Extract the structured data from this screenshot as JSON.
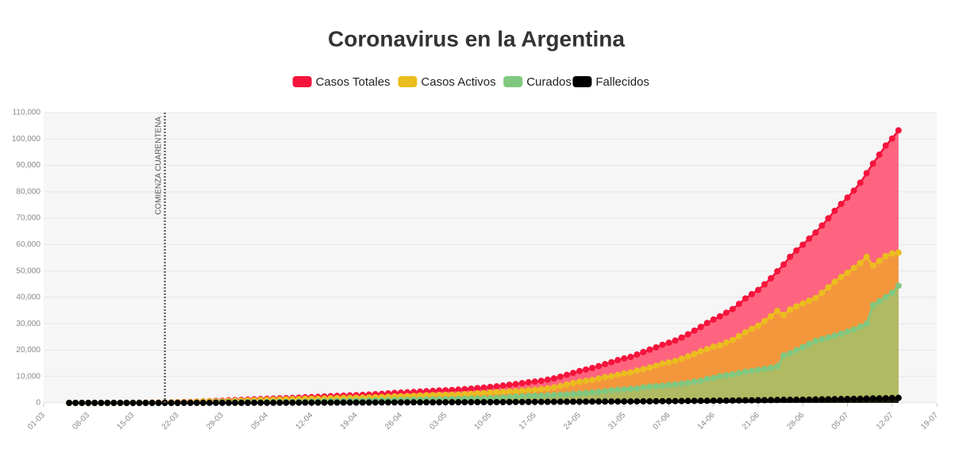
{
  "chart_data": {
    "type": "area",
    "title": "Coronavirus en la Argentina",
    "annotation": {
      "text": "COMIENZA CUARENTENA",
      "x": "20-03"
    },
    "legend": "top",
    "grid": true,
    "x": [
      "05-03",
      "06-03",
      "07-03",
      "08-03",
      "09-03",
      "10-03",
      "11-03",
      "12-03",
      "13-03",
      "14-03",
      "15-03",
      "16-03",
      "17-03",
      "18-03",
      "19-03",
      "20-03",
      "21-03",
      "22-03",
      "23-03",
      "24-03",
      "25-03",
      "26-03",
      "27-03",
      "28-03",
      "29-03",
      "30-03",
      "31-03",
      "01-04",
      "02-04",
      "03-04",
      "04-04",
      "05-04",
      "06-04",
      "07-04",
      "08-04",
      "09-04",
      "10-04",
      "11-04",
      "12-04",
      "13-04",
      "14-04",
      "15-04",
      "16-04",
      "17-04",
      "18-04",
      "19-04",
      "20-04",
      "21-04",
      "22-04",
      "23-04",
      "24-04",
      "25-04",
      "26-04",
      "27-04",
      "28-04",
      "29-04",
      "30-04",
      "01-05",
      "02-05",
      "03-05",
      "04-05",
      "05-05",
      "06-05",
      "07-05",
      "08-05",
      "09-05",
      "10-05",
      "11-05",
      "12-05",
      "13-05",
      "14-05",
      "15-05",
      "16-05",
      "17-05",
      "18-05",
      "19-05",
      "20-05",
      "21-05",
      "22-05",
      "23-05",
      "24-05",
      "25-05",
      "26-05",
      "27-05",
      "28-05",
      "29-05",
      "30-05",
      "31-05",
      "01-06",
      "02-06",
      "03-06",
      "04-06",
      "05-06",
      "06-06",
      "07-06",
      "08-06",
      "09-06",
      "10-06",
      "11-06",
      "12-06",
      "13-06",
      "14-06",
      "15-06",
      "16-06",
      "17-06",
      "18-06",
      "19-06",
      "20-06",
      "21-06",
      "22-06",
      "23-06",
      "24-06",
      "25-06",
      "26-06",
      "27-06",
      "28-06",
      "29-06",
      "30-06",
      "01-07",
      "02-07",
      "03-07",
      "04-07",
      "05-07",
      "06-07",
      "07-07",
      "08-07",
      "09-07",
      "10-07",
      "11-07",
      "12-07",
      "13-07"
    ],
    "series": [
      {
        "name": "Casos Totales",
        "color": "#f5143c",
        "fill": "#ff4a6a",
        "values": [
          2,
          8,
          9,
          12,
          17,
          19,
          21,
          31,
          34,
          45,
          56,
          65,
          79,
          97,
          128,
          158,
          225,
          266,
          301,
          387,
          502,
          589,
          690,
          745,
          820,
          966,
          1054,
          1133,
          1265,
          1353,
          1451,
          1554,
          1628,
          1715,
          1795,
          1894,
          1975,
          2142,
          2208,
          2277,
          2443,
          2571,
          2669,
          2758,
          2839,
          2941,
          3031,
          3144,
          3288,
          3435,
          3607,
          3780,
          3892,
          4003,
          4127,
          4285,
          4428,
          4532,
          4681,
          4783,
          4887,
          5020,
          5208,
          5371,
          5611,
          5776,
          6034,
          6265,
          6563,
          6879,
          7134,
          7479,
          7805,
          8068,
          8371,
          8809,
          9283,
          9931,
          10649,
          11353,
          12076,
          12628,
          13228,
          13933,
          14702,
          15419,
          16214,
          16851,
          17415,
          18319,
          19268,
          20197,
          21037,
          22020,
          22794,
          23620,
          24761,
          25987,
          27373,
          28764,
          30295,
          31577,
          32785,
          34159,
          35552,
          37510,
          39570,
          41204,
          42785,
          44931,
          47216,
          49851,
          52457,
          55343,
          57744,
          59933,
          62268,
          64530,
          67197,
          69941,
          72786,
          75376,
          77815,
          80447,
          83426,
          87030,
          90693,
          94060,
          97509,
          100166,
          103265
        ]
      },
      {
        "name": "Casos Activos",
        "color": "#ebbd1e",
        "fill": "#f2a030",
        "values": [
          2,
          8,
          8,
          11,
          16,
          18,
          20,
          29,
          32,
          43,
          54,
          62,
          76,
          91,
          122,
          151,
          194,
          210,
          232,
          316,
          418,
          500,
          591,
          529,
          568,
          699,
          778,
          841,
          960,
          1030,
          1123,
          1175,
          1230,
          1292,
          1357,
          1437,
          1445,
          1577,
          1591,
          1573,
          1677,
          1763,
          1831,
          1889,
          1918,
          1962,
          2004,
          2077,
          2147,
          2226,
          2315,
          2448,
          2503,
          2584,
          2675,
          2787,
          2892,
          2953,
          3059,
          3092,
          3131,
          3185,
          3317,
          3430,
          3635,
          3727,
          3927,
          4092,
          4171,
          4332,
          4396,
          4589,
          4807,
          4983,
          5241,
          5533,
          5882,
          6398,
          6979,
          7495,
          8014,
          8361,
          8729,
          9257,
          9775,
          10103,
          10645,
          11162,
          11523,
          12278,
          12789,
          13414,
          14093,
          14886,
          15310,
          15888,
          16702,
          17636,
          18544,
          19590,
          20369,
          21302,
          21815,
          22841,
          23816,
          25286,
          26751,
          28062,
          29251,
          30988,
          32844,
          34871,
          33307,
          35377,
          36560,
          37626,
          38736,
          39723,
          41746,
          43756,
          45861,
          47720,
          49325,
          51124,
          52944,
          55386,
          51999,
          53840,
          55635,
          56621,
          56962
        ]
      },
      {
        "name": "Curados",
        "color": "#80c880",
        "fill": "#a3bf6a",
        "values": [
          0,
          0,
          0,
          0,
          0,
          0,
          0,
          0,
          0,
          0,
          0,
          1,
          1,
          3,
          3,
          3,
          27,
          52,
          63,
          63,
          72,
          72,
          80,
          196,
          228,
          240,
          248,
          256,
          266,
          279,
          280,
          325,
          338,
          358,
          365,
          375,
          440,
          468,
          515,
          596,
          653,
          685,
          709,
          737,
          785,
          840,
          880,
          915,
          976,
          1030,
          1107,
          1140,
          1192,
          1218,
          1245,
          1284,
          1318,
          1354,
          1385,
          1445,
          1496,
          1571,
          1618,
          1659,
          1683,
          1749,
          1802,
          1859,
          2073,
          2218,
          2385,
          2534,
          2625,
          2703,
          2737,
          2873,
          2984,
          3100,
          3225,
          3406,
          3595,
          3783,
          3999,
          4166,
          4407,
          4788,
          5030,
          5137,
          5336,
          5472,
          5896,
          6180,
          6312,
          6486,
          6820,
          7039,
          7342,
          7616,
          8064,
          8389,
          9111,
          9442,
          10116,
          10438,
          10823,
          11276,
          11840,
          12150,
          12523,
          12900,
          13294,
          13864,
          18000,
          18793,
          20000,
          21100,
          22300,
          23500,
          24100,
          24800,
          25500,
          26200,
          27000,
          27800,
          28900,
          30000,
          37000,
          38500,
          40100,
          41700,
          44400
        ]
      },
      {
        "name": "Fallecidos",
        "color": "#000000",
        "fill": "#000000",
        "values": [
          0,
          0,
          1,
          1,
          1,
          1,
          1,
          2,
          2,
          2,
          2,
          2,
          2,
          3,
          3,
          4,
          4,
          4,
          6,
          8,
          12,
          17,
          19,
          20,
          24,
          27,
          28,
          36,
          39,
          44,
          48,
          54,
          60,
          65,
          73,
          82,
          90,
          97,
          102,
          108,
          113,
          123,
          129,
          132,
          136,
          139,
          147,
          152,
          165,
          179,
          185,
          192,
          197,
          201,
          207,
          214,
          218,
          225,
          237,
          246,
          260,
          264,
          273,
          282,
          293,
          300,
          305,
          314,
          319,
          329,
          353,
          356,
          373,
          382,
          393,
          403,
          417,
          433,
          445,
          452,
          467,
          484,
          500,
          510,
          520,
          528,
          539,
          552,
          556,
          569,
          583,
          603,
          632,
          648,
          664,
          693,
          717,
          735,
          765,
          785,
          815,
          833,
          854,
          880,
          913,
          948,
          979,
          992,
          1011,
          1043,
          1078,
          1116,
          1150,
          1173,
          1184,
          1207,
          1232,
          1307,
          1351,
          1385,
          1425,
          1456,
          1490,
          1523,
          1582,
          1644,
          1694,
          1720,
          1774,
          1845,
          1903
        ]
      }
    ],
    "xlim": [
      "01-03",
      "19-07"
    ],
    "xticks": [
      "01-03",
      "08-03",
      "15-03",
      "22-03",
      "29-03",
      "05-04",
      "12-04",
      "19-04",
      "26-04",
      "03-05",
      "10-05",
      "17-05",
      "24-05",
      "31-05",
      "07-06",
      "14-06",
      "21-06",
      "28-06",
      "05-07",
      "12-07",
      "19-07"
    ],
    "ylim": [
      0,
      110000
    ],
    "yticks": [
      0,
      {
        "value": 10000,
        "label": "10,000"
      },
      {
        "value": 20000,
        "label": "20,000"
      },
      {
        "value": 30000,
        "label": "30,000"
      },
      {
        "value": 40000,
        "label": "40,000"
      },
      {
        "value": 50000,
        "label": "50,000"
      },
      {
        "value": 60000,
        "label": "60,000"
      },
      {
        "value": 70000,
        "label": "70,000"
      },
      {
        "value": 80000,
        "label": "80,000"
      },
      {
        "value": 90000,
        "label": "90,000"
      },
      {
        "value": 100000,
        "label": "100,000"
      },
      {
        "value": 110000,
        "label": "110,000"
      }
    ]
  }
}
